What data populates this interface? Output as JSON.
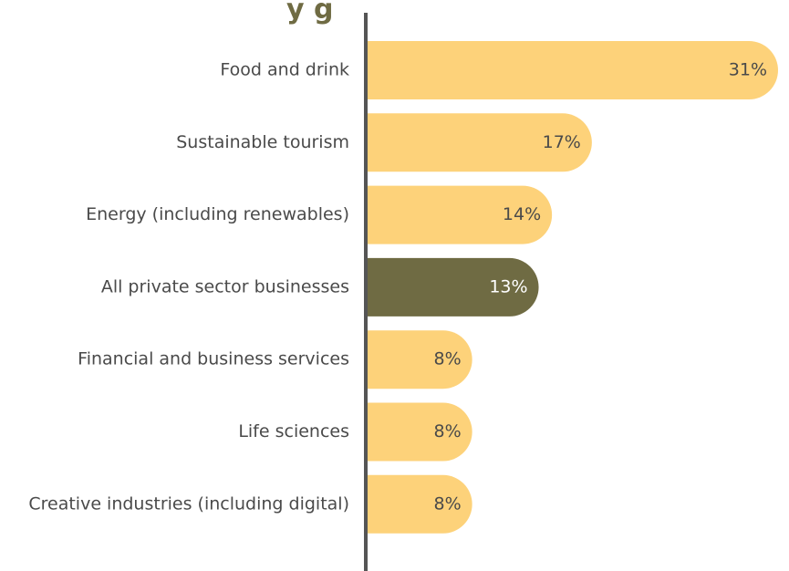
{
  "chart_data": {
    "type": "bar",
    "orientation": "horizontal",
    "title_fragment": "y g",
    "categories": [
      "Food and drink",
      "Sustainable tourism",
      "Energy (including renewables)",
      "All private sector businesses",
      "Financial and business services",
      "Life sciences",
      "Creative industries (including digital)"
    ],
    "values": [
      31,
      17,
      14,
      13,
      8,
      8,
      8
    ],
    "value_labels": [
      "31%",
      "17%",
      "14%",
      "13%",
      "8%",
      "8%",
      "8%"
    ],
    "highlight_index": 3,
    "unit": "%",
    "xlim": [
      0,
      31
    ],
    "grid": false,
    "legend": "none"
  },
  "colors": {
    "bar": "#fdd27a",
    "highlight_bar": "#6f6b43",
    "axis": "#555555",
    "category_text": "#4a4a4a",
    "value_text": "#4a4a4a",
    "highlight_value_text": "#ffffff",
    "title": "#6f6b43"
  }
}
